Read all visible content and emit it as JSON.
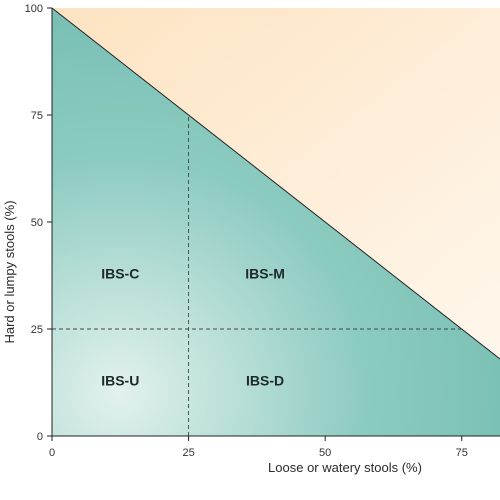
{
  "chart_data": {
    "type": "area",
    "xlabel": "Loose or watery stools (%)",
    "ylabel": "Hard or lumpy stools (%)",
    "xlim": [
      0,
      82
    ],
    "ylim": [
      0,
      100
    ],
    "xticks": [
      0,
      25,
      50,
      75
    ],
    "yticks": [
      0,
      25,
      50,
      75,
      100
    ],
    "boundary_line": [
      [
        0,
        100
      ],
      [
        100,
        0
      ]
    ],
    "thresholds": {
      "x": 25,
      "y": 25
    },
    "regions": [
      {
        "label": "IBS-C",
        "x": 12.5,
        "y": 38
      },
      {
        "label": "IBS-M",
        "x": 39,
        "y": 38
      },
      {
        "label": "IBS-U",
        "x": 12.5,
        "y": 13
      },
      {
        "label": "IBS-D",
        "x": 39,
        "y": 13
      }
    ],
    "grid": false,
    "colors": {
      "valid_region": "#8ccbc0",
      "valid_region_light": "#e2f1ee",
      "valid_region_dark": "#74bcb1",
      "invalid_region": "#fde3c2",
      "invalid_region_light": "#fff7ec",
      "axis": "#222222",
      "threshold": "#444444"
    }
  }
}
